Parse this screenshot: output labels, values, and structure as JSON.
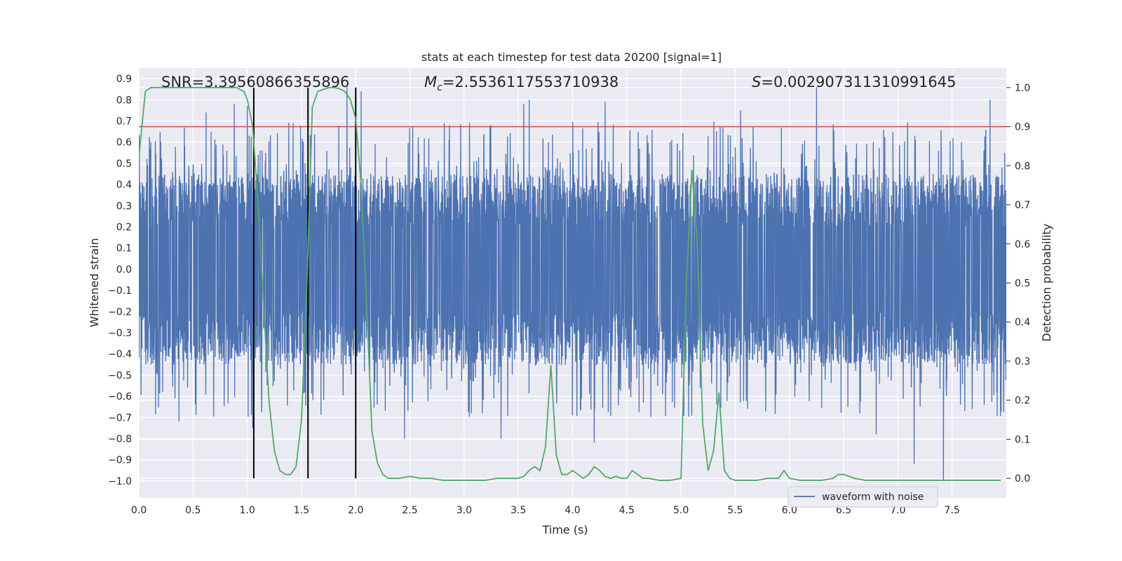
{
  "chart_data": {
    "type": "line",
    "title": "stats at each timestep for test data 20200 [signal=1]",
    "xlabel": "Time (s)",
    "ylabel_left": "Whitened strain",
    "ylabel_right": "Detection probability",
    "xlim": [
      0.0,
      8.0
    ],
    "ylim_left": [
      -1.08,
      0.95
    ],
    "ylim_right": [
      -0.05,
      1.05
    ],
    "x_ticks": [
      "0.0",
      "0.5",
      "1.0",
      "1.5",
      "2.0",
      "2.5",
      "3.0",
      "3.5",
      "4.0",
      "4.5",
      "5.0",
      "5.5",
      "6.0",
      "6.5",
      "7.0",
      "7.5"
    ],
    "y_ticks_left": [
      "0.9",
      "0.8",
      "0.7",
      "0.6",
      "0.5",
      "0.4",
      "0.3",
      "0.2",
      "0.1",
      "0.0",
      "-0.1",
      "-0.2",
      "-0.3",
      "-0.4",
      "-0.5",
      "-0.6",
      "-0.7",
      "-0.8",
      "-0.9",
      "-1.0"
    ],
    "y_ticks_right": [
      "1.0",
      "0.9",
      "0.8",
      "0.7",
      "0.6",
      "0.5",
      "0.4",
      "0.3",
      "0.2",
      "0.1",
      "0.0"
    ],
    "grid": true,
    "legend_position": "bottom-right",
    "annotations": {
      "snr": "SNR=3.39560866355896",
      "mc_symbol": "M",
      "mc_sub": "c",
      "mc_value": "=2.5536117553710938",
      "s_symbol": "S",
      "s_value": "=0.002907311310991645"
    },
    "threshold": {
      "value": 0.9,
      "axis": "right",
      "color": "#c44e52"
    },
    "vertical_markers": [
      1.06,
      1.56,
      2.0
    ],
    "colors": {
      "waveform": "#4c72b0",
      "probability": "#55a868",
      "markers": "#000000",
      "background": "#eaeaf2",
      "grid": "#ffffff"
    },
    "series": [
      {
        "name": "waveform with noise",
        "axis": "left",
        "style": "dense noise band",
        "envelope": {
          "typical_min": -0.45,
          "typical_max": 0.45,
          "peak_max": 0.86,
          "peak_min": -1.0
        },
        "notable_peaks": [
          {
            "x": 0.62,
            "y": 0.74
          },
          {
            "x": 0.88,
            "y": 0.78
          },
          {
            "x": 1.0,
            "y": 0.77
          },
          {
            "x": 1.92,
            "y": 0.86
          },
          {
            "x": 2.05,
            "y": 0.84
          },
          {
            "x": 3.55,
            "y": 0.78
          },
          {
            "x": 3.6,
            "y": 0.8
          },
          {
            "x": 4.3,
            "y": 0.79
          },
          {
            "x": 5.55,
            "y": 0.75
          },
          {
            "x": 6.25,
            "y": 0.86
          },
          {
            "x": 7.85,
            "y": 0.8
          },
          {
            "x": 0.37,
            "y": -0.72
          },
          {
            "x": 1.05,
            "y": -0.75
          },
          {
            "x": 2.45,
            "y": -0.8
          },
          {
            "x": 3.34,
            "y": -0.8
          },
          {
            "x": 4.2,
            "y": -0.82
          },
          {
            "x": 7.15,
            "y": -0.92
          },
          {
            "x": 7.42,
            "y": -1.0
          },
          {
            "x": 6.8,
            "y": -0.78
          }
        ]
      },
      {
        "name": "",
        "axis": "right",
        "x": [
          0.0,
          0.06,
          0.11,
          0.16,
          0.22,
          0.3,
          0.4,
          0.5,
          0.6,
          0.7,
          0.8,
          0.9,
          0.97,
          1.0,
          1.05,
          1.1,
          1.15,
          1.2,
          1.25,
          1.3,
          1.35,
          1.4,
          1.45,
          1.5,
          1.55,
          1.6,
          1.65,
          1.7,
          1.75,
          1.8,
          1.85,
          1.9,
          1.95,
          2.0,
          2.05,
          2.1,
          2.15,
          2.2,
          2.25,
          2.3,
          2.35,
          2.4,
          2.5,
          2.6,
          2.7,
          2.8,
          2.9,
          3.0,
          3.1,
          3.2,
          3.3,
          3.4,
          3.5,
          3.55,
          3.6,
          3.65,
          3.7,
          3.75,
          3.8,
          3.85,
          3.9,
          3.95,
          4.0,
          4.05,
          4.1,
          4.15,
          4.2,
          4.25,
          4.3,
          4.35,
          4.4,
          4.45,
          4.5,
          4.55,
          4.6,
          4.65,
          4.7,
          4.8,
          4.9,
          5.0,
          5.05,
          5.1,
          5.15,
          5.2,
          5.25,
          5.3,
          5.35,
          5.4,
          5.45,
          5.5,
          5.6,
          5.7,
          5.8,
          5.9,
          5.95,
          6.0,
          6.1,
          6.2,
          6.3,
          6.4,
          6.45,
          6.5,
          6.6,
          6.7,
          6.8,
          6.9,
          7.0,
          7.2,
          7.4,
          7.6,
          7.8,
          7.95
        ],
        "values": [
          0.82,
          0.99,
          1.0,
          1.0,
          1.0,
          1.0,
          1.0,
          1.0,
          1.0,
          1.0,
          1.0,
          1.0,
          0.99,
          0.97,
          0.9,
          0.7,
          0.45,
          0.2,
          0.07,
          0.02,
          0.01,
          0.01,
          0.03,
          0.15,
          0.5,
          0.95,
          0.99,
          0.995,
          1.0,
          1.0,
          0.997,
          0.99,
          0.97,
          0.92,
          0.75,
          0.45,
          0.12,
          0.04,
          0.01,
          0.0,
          0.0,
          0.0,
          0.005,
          0.0,
          0.0,
          -0.005,
          -0.005,
          -0.005,
          -0.005,
          -0.005,
          0.0,
          0.0,
          0.0,
          0.005,
          0.02,
          0.03,
          0.02,
          0.08,
          0.29,
          0.06,
          0.01,
          0.01,
          0.02,
          0.01,
          0.0,
          0.01,
          0.03,
          0.02,
          0.005,
          0.0,
          0.005,
          0.0,
          0.0,
          0.02,
          0.01,
          0.0,
          0.0,
          -0.005,
          -0.005,
          0.0,
          0.5,
          0.79,
          0.6,
          0.14,
          0.02,
          0.07,
          0.22,
          0.02,
          0.0,
          -0.005,
          -0.005,
          -0.005,
          0.0,
          0.0,
          0.02,
          0.0,
          -0.005,
          -0.005,
          -0.005,
          0.0,
          0.01,
          0.01,
          0.0,
          -0.005,
          -0.005,
          -0.005,
          -0.005,
          -0.005,
          -0.005,
          -0.005,
          -0.005,
          -0.005
        ]
      }
    ]
  }
}
